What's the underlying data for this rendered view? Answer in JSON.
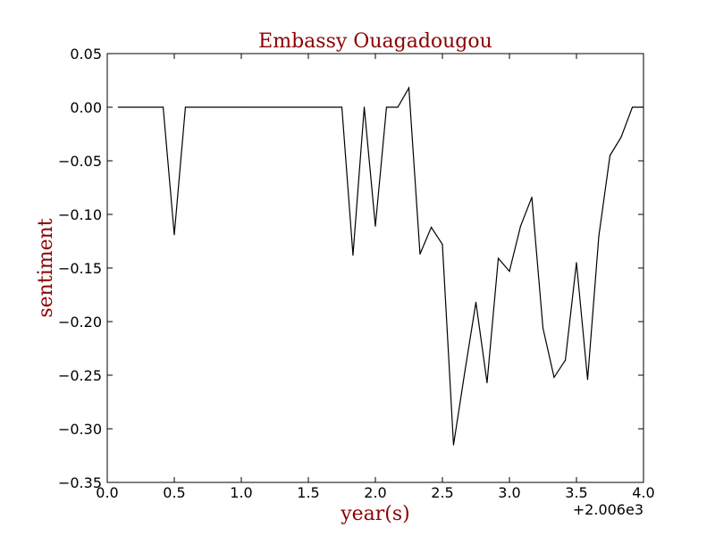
{
  "chart_data": {
    "type": "line",
    "title": "Embassy Ouagadougou",
    "xlabel": "year(s)",
    "ylabel": "sentiment",
    "x_offset_label": "+2.006e3",
    "xlim": [
      0.0,
      4.0
    ],
    "ylim": [
      -0.35,
      0.05
    ],
    "x_ticks": [
      0.0,
      0.5,
      1.0,
      1.5,
      2.0,
      2.5,
      3.0,
      3.5,
      4.0
    ],
    "x_tick_labels": [
      "0.0",
      "0.5",
      "1.0",
      "1.5",
      "2.0",
      "2.5",
      "3.0",
      "3.5",
      "4.0"
    ],
    "y_ticks": [
      0.05,
      0.0,
      -0.05,
      -0.1,
      -0.15,
      -0.2,
      -0.25,
      -0.3,
      -0.35
    ],
    "y_tick_labels": [
      "0.05",
      "0.00",
      "−0.05",
      "−0.10",
      "−0.15",
      "−0.20",
      "−0.25",
      "−0.30",
      "−0.35"
    ],
    "grid": false,
    "series": [
      {
        "color": "#000000",
        "x": [
          0.083,
          0.167,
          0.25,
          0.333,
          0.417,
          0.5,
          0.583,
          0.667,
          0.75,
          0.833,
          0.917,
          1.0,
          1.083,
          1.167,
          1.25,
          1.333,
          1.417,
          1.5,
          1.583,
          1.667,
          1.75,
          1.833,
          1.917,
          2.0,
          2.083,
          2.167,
          2.25,
          2.333,
          2.417,
          2.5,
          2.583,
          2.667,
          2.75,
          2.833,
          2.917,
          3.0,
          3.083,
          3.167,
          3.25,
          3.333,
          3.417,
          3.5,
          3.583,
          3.667,
          3.75,
          3.833,
          3.917,
          4.0
        ],
        "y": [
          0.0,
          0.0,
          0.0,
          0.0,
          0.0,
          -0.119,
          0.0,
          0.0,
          0.0,
          0.0,
          0.0,
          0.0,
          0.0,
          0.0,
          0.0,
          0.0,
          0.0,
          0.0,
          0.0,
          0.0,
          0.0,
          -0.138,
          0.0,
          -0.111,
          0.0,
          0.0,
          0.018,
          -0.137,
          -0.112,
          -0.128,
          -0.315,
          -0.247,
          -0.182,
          -0.257,
          -0.141,
          -0.153,
          -0.111,
          -0.084,
          -0.206,
          -0.252,
          -0.236,
          -0.145,
          -0.254,
          -0.12,
          -0.045,
          -0.028,
          0.0,
          0.0
        ]
      }
    ]
  }
}
